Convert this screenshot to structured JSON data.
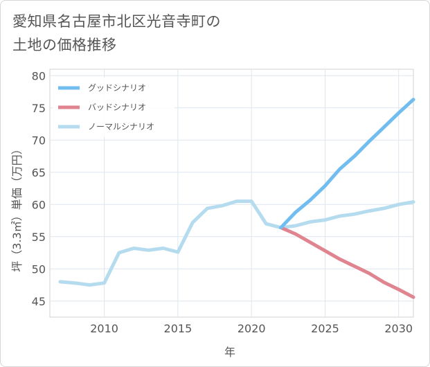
{
  "title_lines": [
    "愛知県名古屋市北区光音寺町の",
    "土地の価格推移"
  ],
  "chart_data": {
    "type": "line",
    "title": "愛知県名古屋市北区光音寺町の土地の価格推移",
    "xlabel": "年",
    "ylabel": "坪（3.3㎡）単価（万円）",
    "xlim": [
      2006.3,
      2031.0
    ],
    "ylim": [
      42.5,
      81.0
    ],
    "xticks": [
      2010,
      2015,
      2020,
      2025,
      2030
    ],
    "yticks": [
      45,
      50,
      55,
      60,
      65,
      70,
      75,
      80
    ],
    "grid": true,
    "legend_position": "top-left",
    "series": [
      {
        "name": "グッドシナリオ",
        "color": "#72bdf0",
        "x": [
          2022,
          2023,
          2024,
          2025,
          2026,
          2027,
          2028,
          2029,
          2030,
          2031
        ],
        "values": [
          56.4,
          58.8,
          60.7,
          62.9,
          65.5,
          67.5,
          69.8,
          72.0,
          74.2,
          76.3
        ]
      },
      {
        "name": "バッドシナリオ",
        "color": "#e0858f",
        "x": [
          2022,
          2023,
          2024,
          2025,
          2026,
          2027,
          2028,
          2029,
          2030,
          2031
        ],
        "values": [
          56.4,
          55.4,
          54.1,
          52.8,
          51.5,
          50.4,
          49.3,
          47.9,
          46.8,
          45.6
        ]
      },
      {
        "name": "ノーマルシナリオ",
        "color": "#b5dbef",
        "x": [
          2007,
          2008,
          2009,
          2010,
          2011,
          2012,
          2013,
          2014,
          2015,
          2016,
          2017,
          2018,
          2019,
          2020,
          2021,
          2022,
          2023,
          2024,
          2025,
          2026,
          2027,
          2028,
          2029,
          2030,
          2031
        ],
        "values": [
          48.0,
          47.8,
          47.5,
          47.8,
          52.5,
          53.2,
          52.9,
          53.2,
          52.6,
          57.2,
          59.4,
          59.8,
          60.5,
          60.5,
          57.0,
          56.4,
          56.7,
          57.3,
          57.6,
          58.2,
          58.5,
          59.0,
          59.4,
          60.0,
          60.4
        ]
      }
    ]
  }
}
